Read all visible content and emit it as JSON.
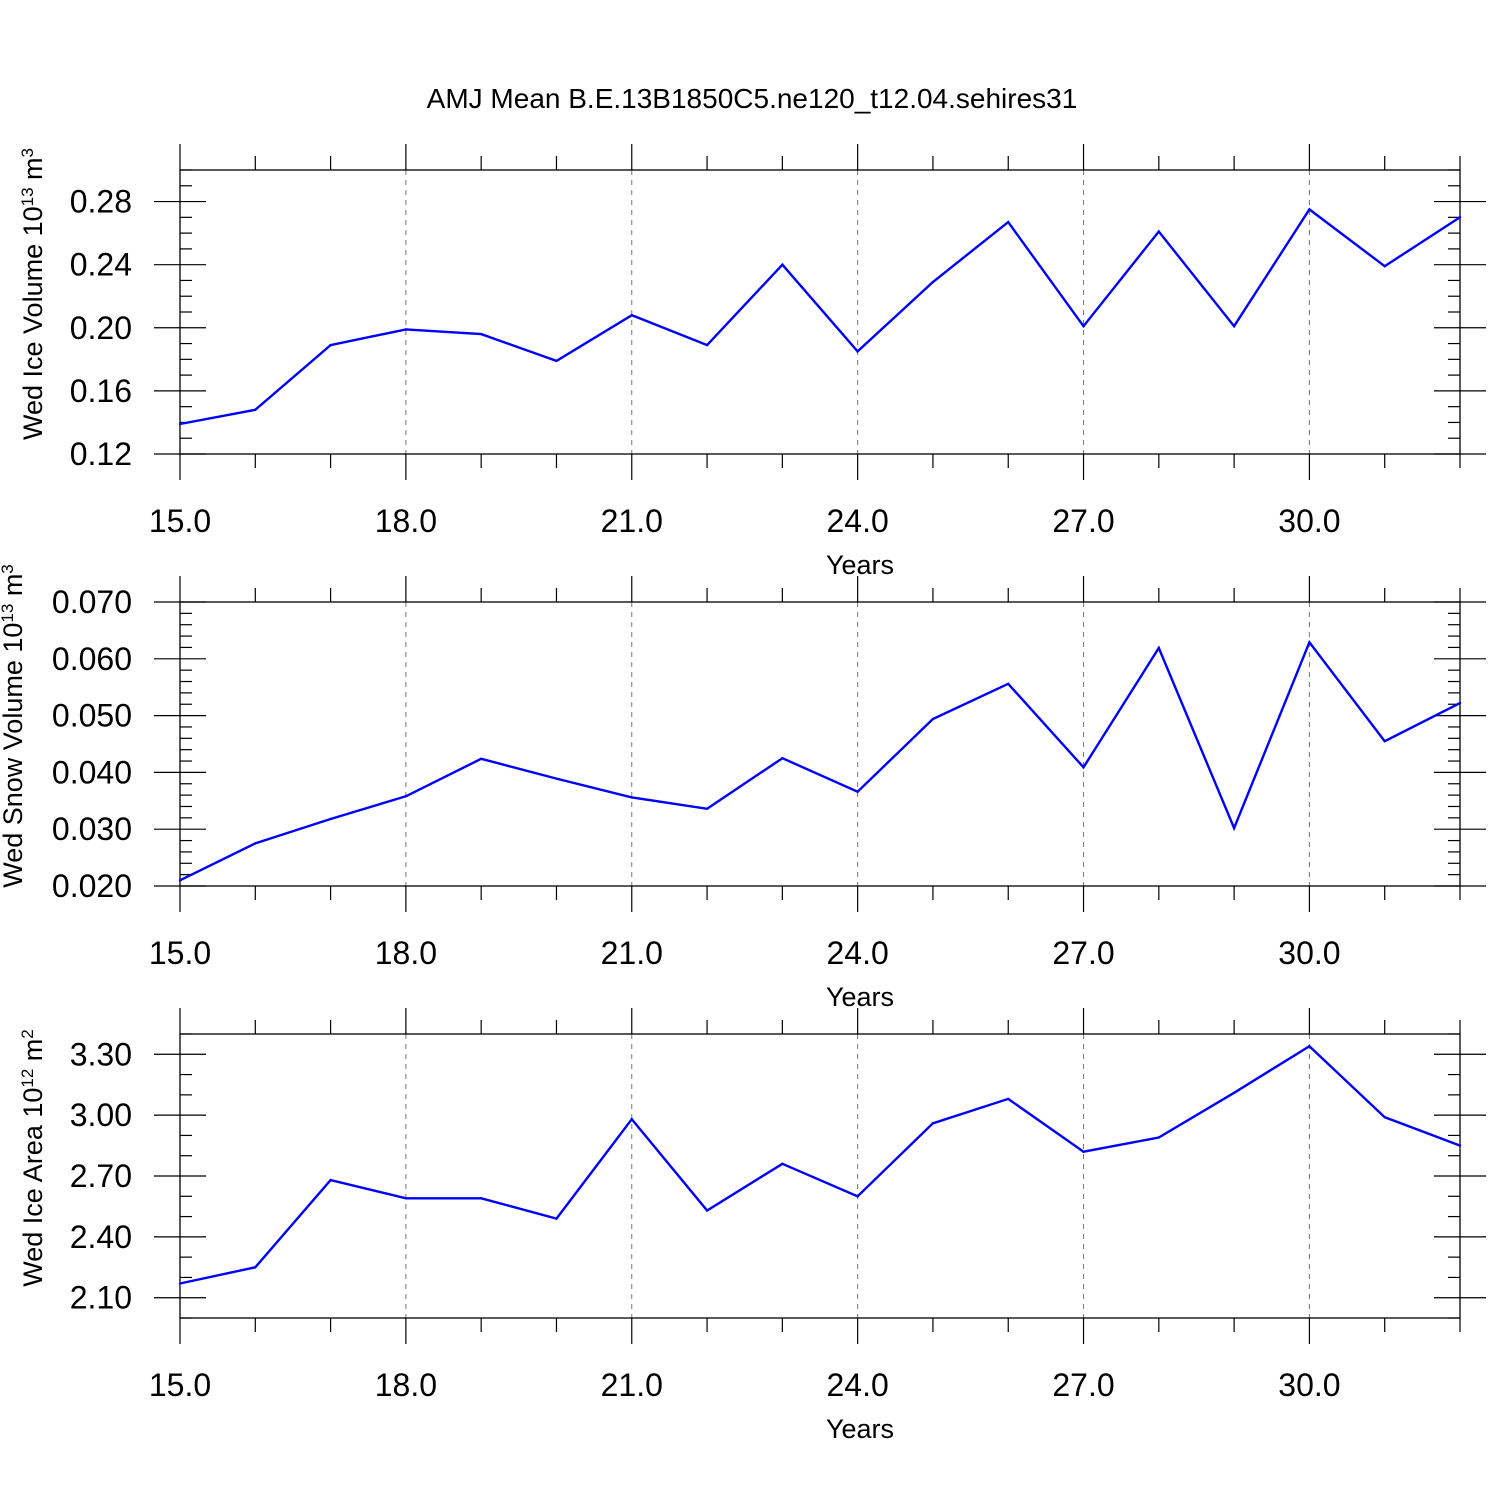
{
  "figure_title": "AMJ Mean B.E.13B1850C5.ne120_t12.04.sehires31",
  "colors": {
    "line": "#0000ff",
    "grid": "#777777"
  },
  "chart_data": [
    {
      "type": "line",
      "xlabel": "Years",
      "ylabel": {
        "main": "Wed Ice Volume 10",
        "sup": "13",
        "unit": " m",
        "unit_sup": "3"
      },
      "xlim": [
        15,
        32
      ],
      "ylim": [
        0.12,
        0.3
      ],
      "xticks": [
        15,
        18,
        21,
        24,
        27,
        30
      ],
      "xtick_labels": [
        "15.0",
        "18.0",
        "21.0",
        "24.0",
        "27.0",
        "30.0"
      ],
      "yticks": [
        0.12,
        0.16,
        0.2,
        0.24,
        0.28
      ],
      "ytick_labels": [
        "0.12",
        "0.16",
        "0.20",
        "0.24",
        "0.28"
      ],
      "y_minor_step": 0.01,
      "grid": "vertical dashed at major x ticks",
      "series": [
        {
          "x": [
            15,
            16,
            17,
            18,
            19,
            20,
            21,
            22,
            23,
            24,
            25,
            26,
            27,
            28,
            29,
            30,
            31,
            32
          ],
          "y": [
            0.139,
            0.148,
            0.189,
            0.199,
            0.196,
            0.179,
            0.208,
            0.189,
            0.24,
            0.185,
            0.229,
            0.267,
            0.201,
            0.261,
            0.201,
            0.275,
            0.239,
            0.27
          ]
        }
      ]
    },
    {
      "type": "line",
      "xlabel": "Years",
      "ylabel": {
        "main": "Wed Snow Volume 10",
        "sup": "13",
        "unit": " m",
        "unit_sup": "3"
      },
      "xlim": [
        15,
        32
      ],
      "ylim": [
        0.02,
        0.07
      ],
      "xticks": [
        15,
        18,
        21,
        24,
        27,
        30
      ],
      "xtick_labels": [
        "15.0",
        "18.0",
        "21.0",
        "24.0",
        "27.0",
        "30.0"
      ],
      "yticks": [
        0.02,
        0.03,
        0.04,
        0.05,
        0.06,
        0.07
      ],
      "ytick_labels": [
        "0.020",
        "0.030",
        "0.040",
        "0.050",
        "0.060",
        "0.070"
      ],
      "y_minor_step": 0.002,
      "grid": "vertical dashed at major x ticks",
      "series": [
        {
          "x": [
            15,
            16,
            17,
            18,
            19,
            20,
            21,
            22,
            23,
            24,
            25,
            26,
            27,
            28,
            29,
            30,
            31,
            32
          ],
          "y": [
            0.021,
            0.0275,
            0.0318,
            0.0358,
            0.0424,
            0.0389,
            0.0356,
            0.0336,
            0.0425,
            0.0366,
            0.0494,
            0.0556,
            0.0409,
            0.0619,
            0.0302,
            0.0629,
            0.0455,
            0.0522
          ]
        }
      ]
    },
    {
      "type": "line",
      "xlabel": "Years",
      "ylabel": {
        "main": "Wed Ice Area 10",
        "sup": "12",
        "unit": " m",
        "unit_sup": "2"
      },
      "xlim": [
        15,
        32
      ],
      "ylim": [
        2.0,
        3.4
      ],
      "xticks": [
        15,
        18,
        21,
        24,
        27,
        30
      ],
      "xtick_labels": [
        "15.0",
        "18.0",
        "21.0",
        "24.0",
        "27.0",
        "30.0"
      ],
      "yticks": [
        2.1,
        2.4,
        2.7,
        3.0,
        3.3
      ],
      "ytick_labels": [
        "2.10",
        "2.40",
        "2.70",
        "3.00",
        "3.30"
      ],
      "y_minor_step": 0.1,
      "grid": "vertical dashed at major x ticks",
      "series": [
        {
          "x": [
            15,
            16,
            17,
            18,
            19,
            20,
            21,
            22,
            23,
            24,
            25,
            26,
            27,
            28,
            29,
            30,
            31,
            32
          ],
          "y": [
            2.17,
            2.25,
            2.68,
            2.59,
            2.59,
            2.49,
            2.98,
            2.53,
            2.76,
            2.6,
            2.96,
            3.08,
            2.82,
            2.89,
            3.11,
            3.34,
            2.99,
            2.85
          ]
        }
      ]
    }
  ]
}
